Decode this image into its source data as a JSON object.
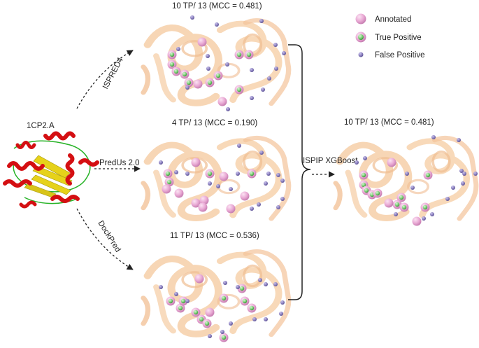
{
  "protein": {
    "id": "1CP2.A"
  },
  "methods": [
    {
      "name": "ISPRED4",
      "result": "10 TP/ 13 (MCC = 0.481)"
    },
    {
      "name": "PredUs 2.0",
      "result": "4 TP/ 13 (MCC = 0.190)"
    },
    {
      "name": "DockPred",
      "result": "11 TP/ 13 (MCC = 0.536)"
    }
  ],
  "combiner": {
    "name": "ISPIP XGBoost",
    "result": "10 TP/ 13 (MCC = 0.481)"
  },
  "legend": [
    {
      "label": "Annotated",
      "marker": "annotated-sphere"
    },
    {
      "label": "True Positive",
      "marker": "true-positive-sphere"
    },
    {
      "label": "False Positive",
      "marker": "false-positive-sphere"
    }
  ],
  "colors": {
    "annotated": "#e9a9d4",
    "true_positive_core": "#7fd17a",
    "false_positive": "#8d82c0",
    "protein_ribbon": "#f6cfa8",
    "helix_red": "#d40f12",
    "sheet_yellow": "#e6d21a",
    "loop_green": "#27b327"
  }
}
